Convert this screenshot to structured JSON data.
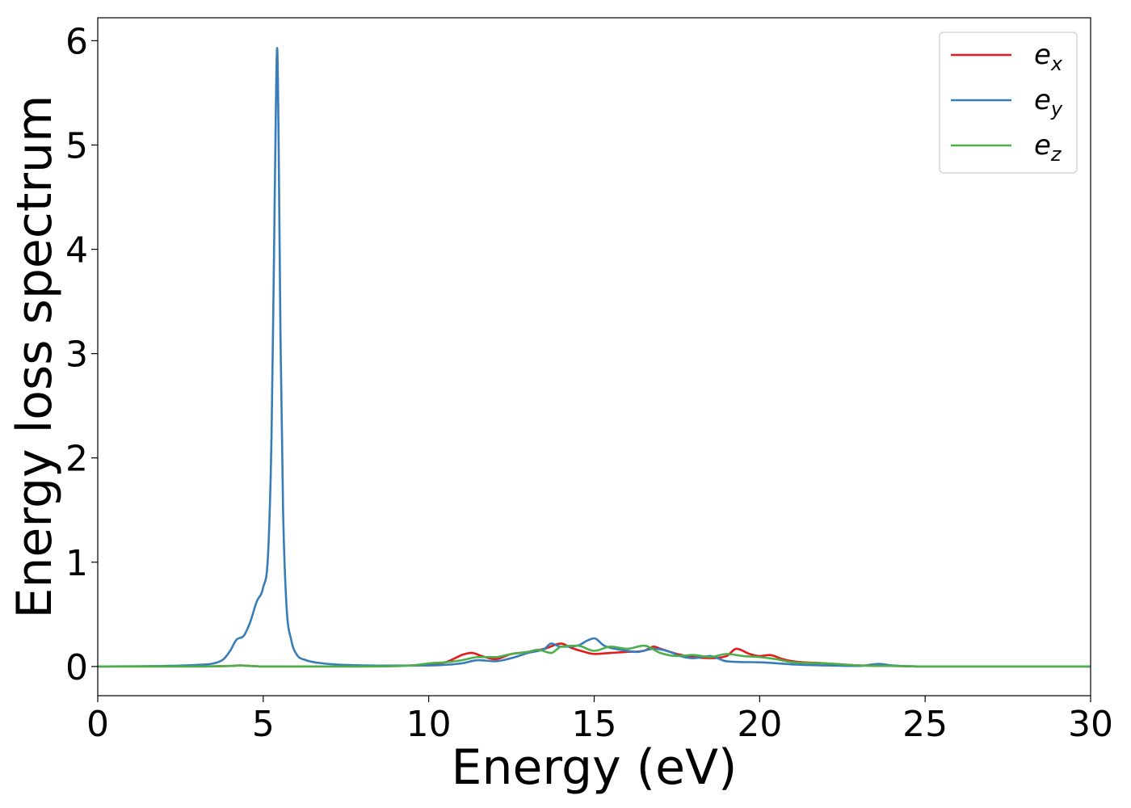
{
  "chart_data": {
    "type": "line",
    "xlabel": "Energy (eV)",
    "ylabel": "Energy loss spectrum",
    "xlim": [
      0,
      30
    ],
    "ylim": [
      -0.28,
      6.22
    ],
    "xticks": [
      0,
      5,
      10,
      15,
      20,
      25,
      30
    ],
    "yticks": [
      0,
      1,
      2,
      3,
      4,
      5,
      6
    ],
    "grid": false,
    "legend_position": "top-right",
    "series": [
      {
        "name": "e_x",
        "label_main": "e",
        "label_sub": "x",
        "color": "#e41a1c",
        "x": [
          0,
          3,
          4,
          4.3,
          4.6,
          5,
          6,
          8,
          9.5,
          10,
          10.5,
          10.8,
          11,
          11.3,
          11.6,
          12,
          12.5,
          13,
          13.5,
          14,
          14.3,
          14.7,
          15,
          15.5,
          16,
          16.5,
          16.8,
          17,
          17.5,
          18,
          18.5,
          19,
          19.3,
          19.7,
          20,
          20.3,
          20.7,
          21,
          22,
          22.5,
          23,
          24,
          25,
          30
        ],
        "y": [
          0,
          0,
          0.005,
          0.01,
          0.005,
          0,
          0,
          0,
          0.01,
          0.02,
          0.04,
          0.08,
          0.11,
          0.13,
          0.1,
          0.07,
          0.12,
          0.14,
          0.17,
          0.22,
          0.18,
          0.14,
          0.12,
          0.13,
          0.14,
          0.15,
          0.19,
          0.17,
          0.12,
          0.09,
          0.08,
          0.1,
          0.17,
          0.12,
          0.1,
          0.11,
          0.07,
          0.05,
          0.03,
          0.02,
          0.01,
          0.005,
          0,
          0
        ]
      },
      {
        "name": "e_y",
        "label_main": "e",
        "label_sub": "y",
        "color": "#377eb8",
        "x": [
          0,
          2,
          3,
          3.5,
          3.8,
          4.0,
          4.2,
          4.4,
          4.6,
          4.8,
          5.0,
          5.15,
          5.25,
          5.32,
          5.38,
          5.42,
          5.46,
          5.52,
          5.6,
          5.7,
          5.85,
          6.0,
          6.3,
          6.8,
          7.5,
          8.5,
          10,
          11,
          11.5,
          12,
          12.5,
          13,
          13.5,
          13.7,
          14,
          14.5,
          14.8,
          15,
          15.3,
          15.8,
          16.3,
          16.8,
          17.2,
          17.6,
          18,
          18.5,
          19,
          20,
          21,
          22,
          23,
          23.6,
          24,
          25,
          30
        ],
        "y": [
          0,
          0.005,
          0.015,
          0.03,
          0.07,
          0.15,
          0.26,
          0.29,
          0.42,
          0.62,
          0.76,
          1.1,
          2.2,
          3.8,
          5.3,
          5.93,
          5.2,
          3.2,
          1.5,
          0.6,
          0.25,
          0.12,
          0.06,
          0.03,
          0.015,
          0.008,
          0.01,
          0.03,
          0.06,
          0.05,
          0.08,
          0.13,
          0.17,
          0.22,
          0.19,
          0.2,
          0.25,
          0.27,
          0.2,
          0.16,
          0.14,
          0.17,
          0.15,
          0.1,
          0.08,
          0.1,
          0.05,
          0.04,
          0.02,
          0.01,
          0.005,
          0.025,
          0.01,
          0,
          0
        ]
      },
      {
        "name": "e_z",
        "label_main": "e",
        "label_sub": "z",
        "color": "#4daf4a",
        "x": [
          0,
          3,
          4,
          4.3,
          4.6,
          5,
          6,
          8,
          9.5,
          10,
          10.5,
          11,
          11.5,
          12,
          12.5,
          13,
          13.3,
          13.7,
          14,
          14.5,
          15,
          15.5,
          16,
          16.5,
          17,
          17.5,
          18,
          18.5,
          19,
          19.5,
          20,
          20.5,
          21,
          22,
          22.5,
          23,
          24,
          25,
          30
        ],
        "y": [
          0,
          0,
          0.005,
          0.01,
          0.005,
          0,
          0,
          0,
          0.01,
          0.03,
          0.04,
          0.06,
          0.09,
          0.09,
          0.12,
          0.14,
          0.16,
          0.13,
          0.19,
          0.2,
          0.15,
          0.19,
          0.17,
          0.2,
          0.13,
          0.1,
          0.11,
          0.09,
          0.12,
          0.1,
          0.09,
          0.07,
          0.04,
          0.03,
          0.02,
          0.01,
          0.005,
          0,
          0
        ]
      }
    ]
  }
}
